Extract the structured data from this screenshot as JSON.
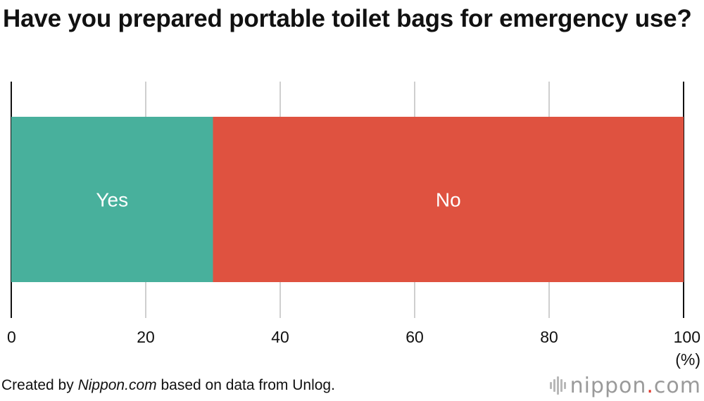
{
  "title": "Have you prepared portable toilet bags for emergency use?",
  "chart_data": {
    "type": "bar",
    "orientation": "horizontal",
    "stacked": true,
    "title": "Have you prepared portable toilet bags for emergency use?",
    "series": [
      {
        "name": "Yes",
        "values": [
          30
        ],
        "color": "#48b09c"
      },
      {
        "name": "No",
        "values": [
          70
        ],
        "color": "#df5240"
      }
    ],
    "xlim": [
      0,
      100
    ],
    "xticks": [
      "0",
      "20",
      "40",
      "60",
      "80",
      "100"
    ],
    "x_unit": "(%)",
    "grid": true
  },
  "footer": {
    "prefix": "Created by ",
    "source_italic": "Nippon.com",
    "suffix": " based on data from Unlog."
  },
  "logo": {
    "text_main": "nippon",
    "text_dot": ".",
    "text_end": "com"
  }
}
